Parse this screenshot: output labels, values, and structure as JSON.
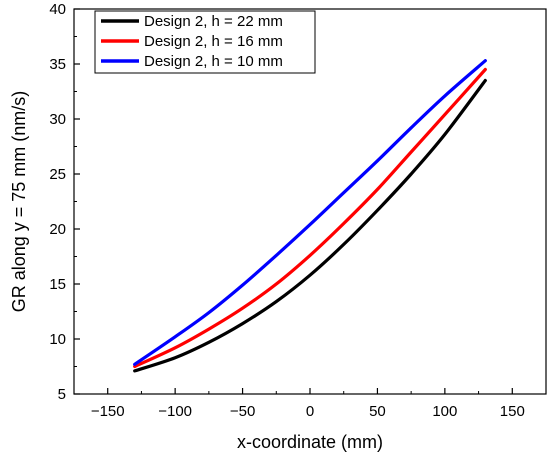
{
  "chart_data": {
    "type": "line",
    "xlabel": "x-coordinate (mm)",
    "ylabel": "GR along y = 75 mm (nm/s)",
    "xlim": [
      -175,
      175
    ],
    "ylim": [
      5,
      40
    ],
    "xticks": [
      -150,
      -100,
      -50,
      0,
      50,
      100,
      150
    ],
    "yticks": [
      5,
      10,
      15,
      20,
      25,
      30,
      35,
      40
    ],
    "grid": false,
    "legend_position": "top-left",
    "series": [
      {
        "name": "Design 2, h = 22 mm",
        "color": "#000000",
        "x": [
          -130,
          -100,
          -75,
          -50,
          -25,
          0,
          25,
          50,
          75,
          100,
          130
        ],
        "y": [
          7.1,
          8.3,
          9.7,
          11.4,
          13.4,
          15.8,
          18.6,
          21.7,
          25.0,
          28.6,
          33.5
        ]
      },
      {
        "name": "Design 2, h = 16 mm",
        "color": "#ff0000",
        "x": [
          -130,
          -100,
          -75,
          -50,
          -25,
          0,
          25,
          50,
          75,
          100,
          130
        ],
        "y": [
          7.5,
          9.2,
          10.9,
          12.8,
          15.0,
          17.6,
          20.5,
          23.6,
          27.0,
          30.4,
          34.5
        ]
      },
      {
        "name": "Design 2, h = 10 mm",
        "color": "#0000ff",
        "x": [
          -130,
          -100,
          -75,
          -50,
          -25,
          0,
          25,
          50,
          75,
          100,
          130
        ],
        "y": [
          7.7,
          10.2,
          12.4,
          14.9,
          17.6,
          20.4,
          23.3,
          26.2,
          29.2,
          32.1,
          35.3
        ]
      }
    ]
  }
}
